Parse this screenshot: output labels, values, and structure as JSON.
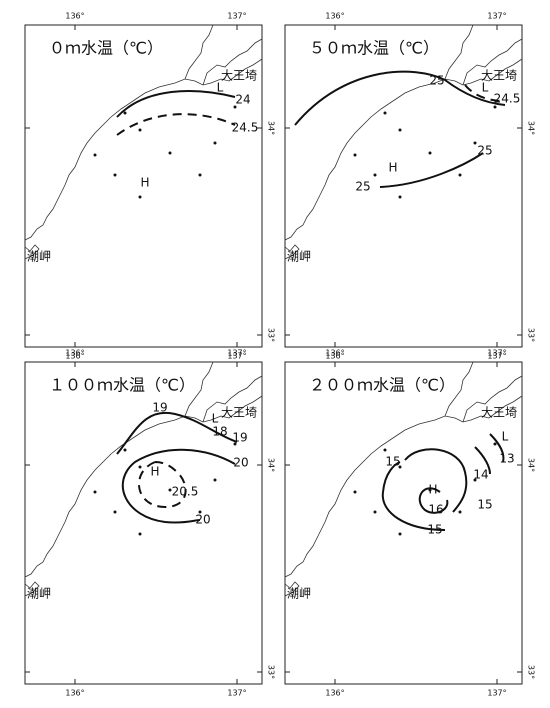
{
  "lon_ticks": [
    "136°",
    "137°"
  ],
  "lat_ticks": [
    "34°",
    "33°"
  ],
  "places": [
    "大王埼",
    "潮岬"
  ],
  "panels": [
    {
      "title": "０ｍ水温（℃）",
      "contour_labels": [
        "24",
        "24.5"
      ],
      "markers": [
        "H",
        "L"
      ]
    },
    {
      "title": "５０ｍ水温（℃）",
      "contour_labels": [
        "25",
        "24.5",
        "25",
        "25"
      ],
      "markers": [
        "H",
        "L"
      ]
    },
    {
      "title": "１００ｍ水温（℃）",
      "contour_labels": [
        "19",
        "18",
        "19",
        "20",
        "20.5",
        "20"
      ],
      "markers": [
        "H",
        "L"
      ]
    },
    {
      "title": "２００ｍ水温（℃）",
      "contour_labels": [
        "15",
        "13",
        "14",
        "15",
        "16",
        "15"
      ],
      "markers": [
        "H",
        "L"
      ]
    }
  ]
}
